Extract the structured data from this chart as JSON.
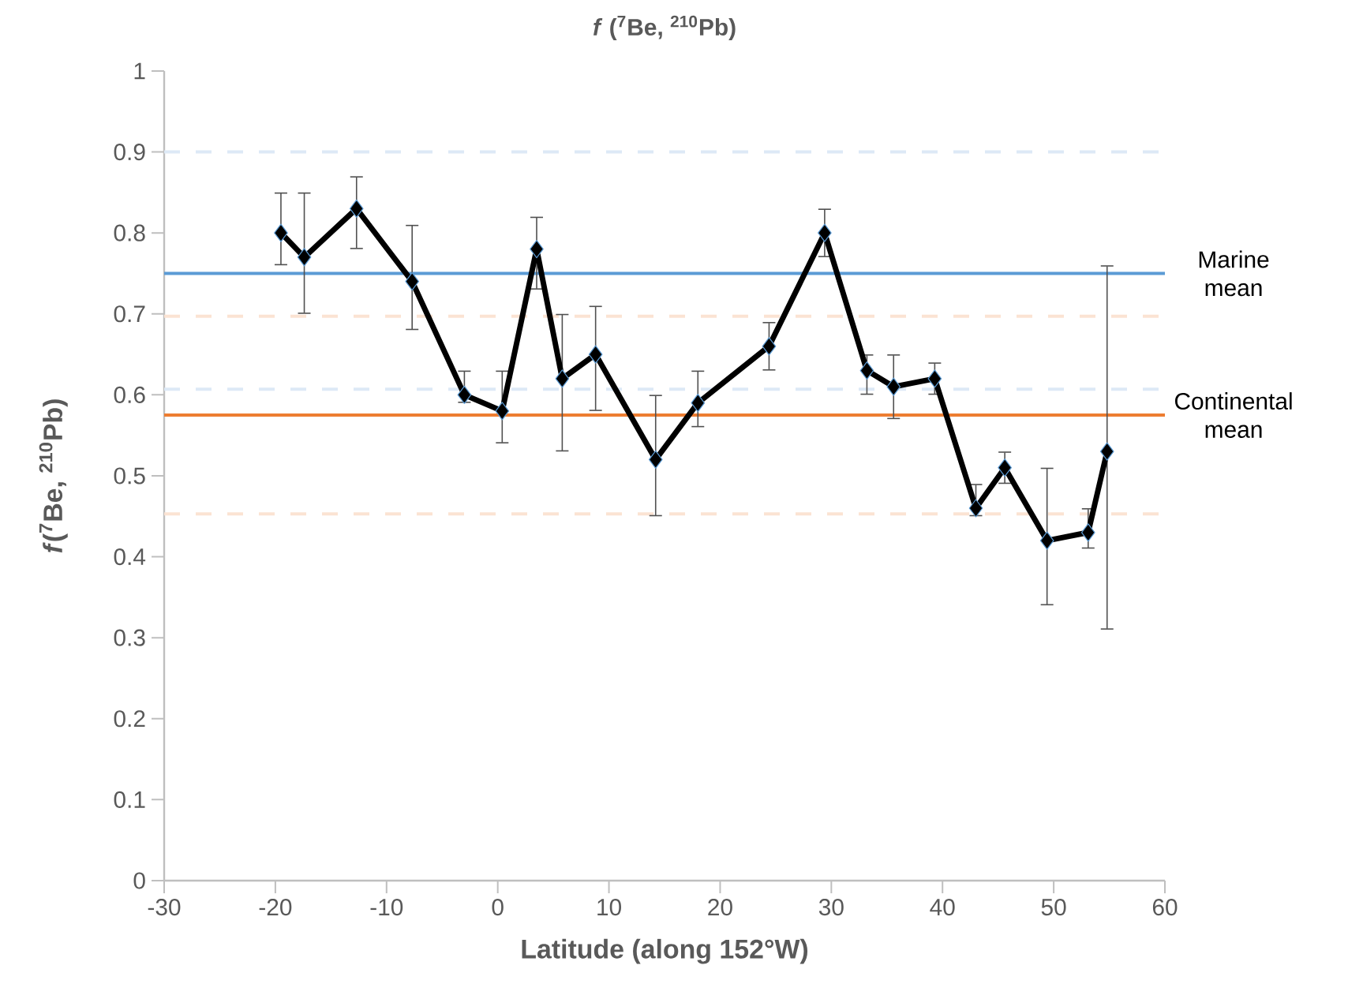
{
  "chart_data": {
    "type": "line",
    "title": "*f* ($^{7}$Be, $^{210}$Pb)",
    "xlabel": "Latitude (along 152°W)",
    "ylabel": "*f*($^{7}$Be, $^{210}$Pb)",
    "x": [
      -19.5,
      -17.4,
      -12.7,
      -7.7,
      -3.0,
      0.4,
      3.5,
      5.8,
      8.8,
      14.2,
      18.0,
      24.4,
      29.4,
      33.2,
      35.6,
      39.3,
      43.0,
      45.6,
      49.4,
      53.1,
      54.8
    ],
    "series": [
      {
        "color": "#000000",
        "values": [
          0.8,
          0.77,
          0.83,
          0.74,
          0.6,
          0.58,
          0.78,
          0.62,
          0.65,
          0.52,
          0.59,
          0.66,
          0.8,
          0.63,
          0.61,
          0.62,
          0.46,
          0.51,
          0.42,
          0.43,
          0.53
        ],
        "errors": [
          [
            0.76,
            0.85
          ],
          [
            0.7,
            0.85
          ],
          [
            0.78,
            0.87
          ],
          [
            0.68,
            0.81
          ],
          [
            0.59,
            0.63
          ],
          [
            0.54,
            0.63
          ],
          [
            0.73,
            0.82
          ],
          [
            0.53,
            0.7
          ],
          [
            0.58,
            0.71
          ],
          [
            0.45,
            0.6
          ],
          [
            0.56,
            0.63
          ],
          [
            0.63,
            0.69
          ],
          [
            0.77,
            0.83
          ],
          [
            0.6,
            0.65
          ],
          [
            0.57,
            0.65
          ],
          [
            0.6,
            0.64
          ],
          [
            0.45,
            0.49
          ],
          [
            0.49,
            0.53
          ],
          [
            0.34,
            0.51
          ],
          [
            0.41,
            0.46
          ],
          [
            0.31,
            0.76
          ]
        ]
      }
    ],
    "marker": "diamond",
    "line_style": "solid",
    "grid": false,
    "xlim": [
      -30,
      60
    ],
    "xticks": [
      -30,
      -20,
      -10,
      0,
      10,
      20,
      30,
      40,
      50,
      60
    ],
    "ylim": [
      0,
      1
    ],
    "yticks": [
      0,
      0.1,
      0.2,
      0.3,
      0.4,
      0.5,
      0.6,
      0.7,
      0.8,
      0.9,
      1
    ],
    "ref_lines": [
      {
        "axis": "y",
        "value": 0.75,
        "label": "Marine mean",
        "color": "#5b9bd5",
        "line_style": "solid"
      },
      {
        "axis": "y",
        "value": 0.575,
        "label": "Continental mean",
        "color": "#ed7d31",
        "line_style": "solid"
      },
      {
        "axis": "y",
        "value": 0.9,
        "color": "#dde9f6",
        "line_style": "dashed"
      },
      {
        "axis": "y",
        "value": 0.607,
        "color": "#dde9f6",
        "line_style": "dashed"
      },
      {
        "axis": "y",
        "value": 0.697,
        "color": "#fbe3d3",
        "line_style": "dashed"
      },
      {
        "axis": "y",
        "value": 0.453,
        "color": "#fbe3d3",
        "line_style": "dashed"
      }
    ]
  }
}
